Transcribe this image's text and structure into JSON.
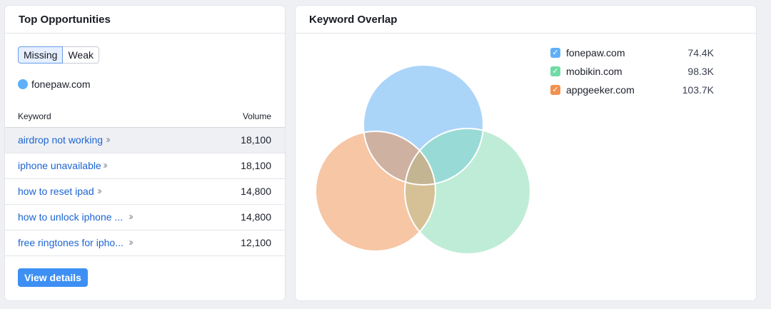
{
  "top_opportunities": {
    "title": "Top Opportunities",
    "segments": [
      "Missing",
      "Weak"
    ],
    "active_segment": "Missing",
    "domain": {
      "name": "fonepaw.com",
      "color": "#5fb0f8"
    },
    "columns": {
      "keyword": "Keyword",
      "volume": "Volume"
    },
    "rows": [
      {
        "keyword": "airdrop not working",
        "volume": "18,100"
      },
      {
        "keyword": "iphone unavailable",
        "volume": "18,100"
      },
      {
        "keyword": "how to reset ipad",
        "volume": "14,800"
      },
      {
        "keyword": "how to unlock iphone ...",
        "volume": "14,800"
      },
      {
        "keyword": "free ringtones for ipho...",
        "volume": "12,100"
      }
    ],
    "view_details_label": "View details"
  },
  "keyword_overlap": {
    "title": "Keyword Overlap",
    "legend": [
      {
        "domain": "fonepaw.com",
        "value": "74.4K",
        "color": "#5fb0f8"
      },
      {
        "domain": "mobikin.com",
        "value": "98.3K",
        "color": "#6fdca6"
      },
      {
        "domain": "appgeeker.com",
        "value": "103.7K",
        "color": "#f1914f"
      }
    ]
  }
}
